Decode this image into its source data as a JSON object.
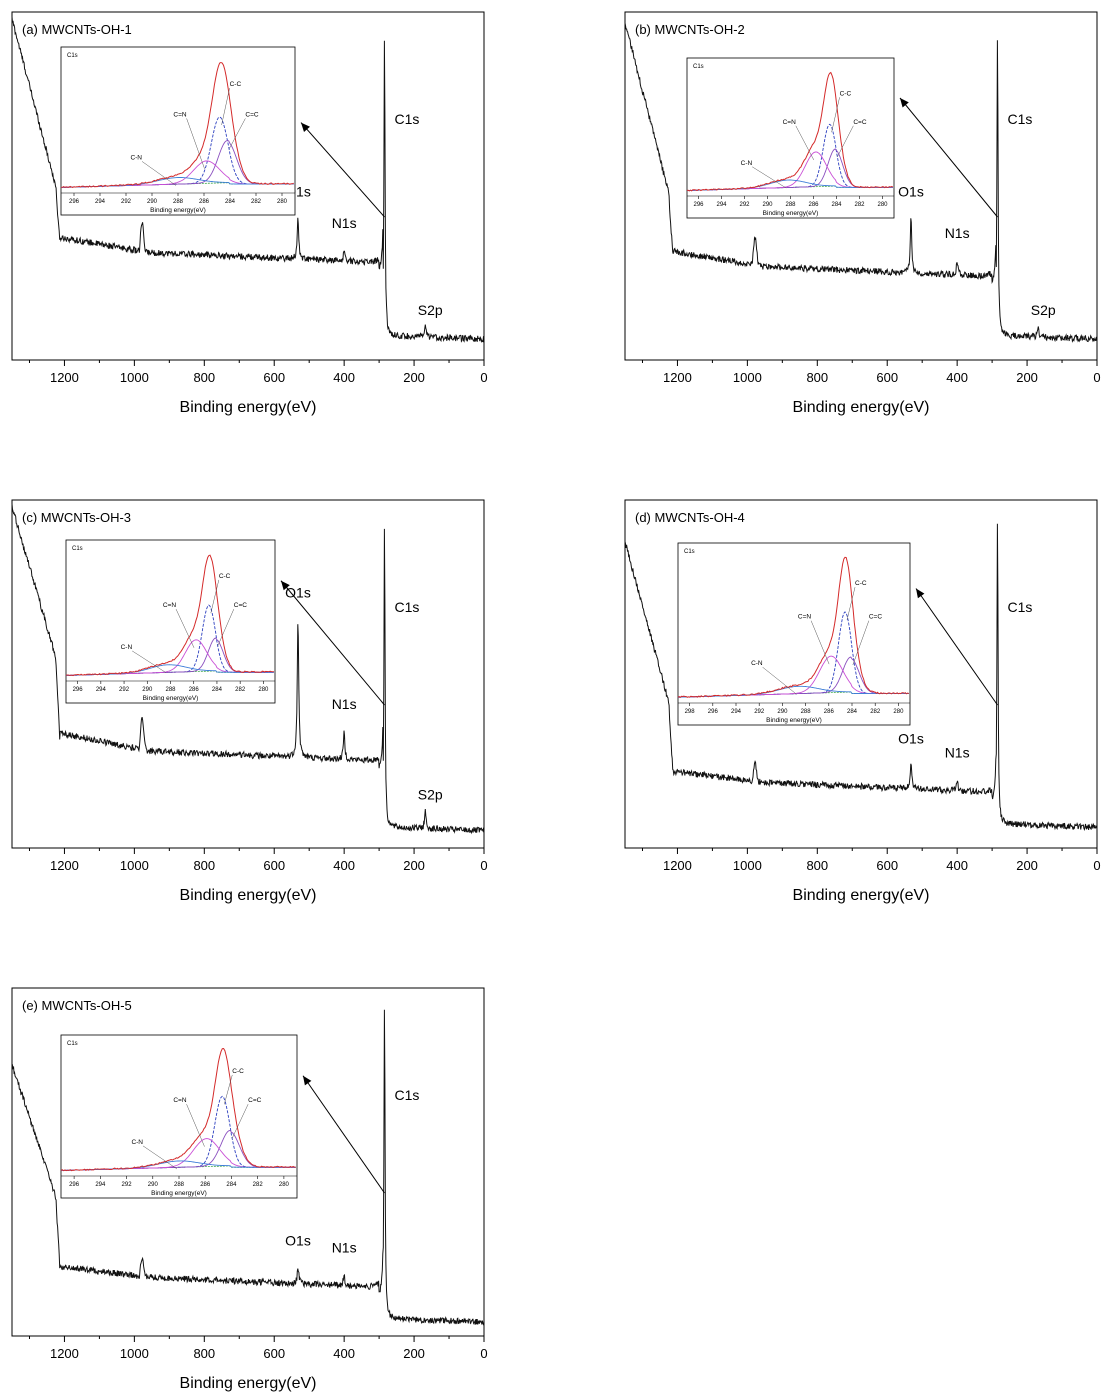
{
  "chart_data": [
    {
      "type": "line",
      "title": "(a) MWCNTs-OH-1",
      "xlabel": "Binding energy(eV)",
      "xlim": [
        1350,
        0
      ],
      "x_ticks": [
        "1200",
        "1000",
        "800",
        "600",
        "400",
        "200",
        "0"
      ],
      "survey": {
        "left_level": 0.98,
        "drop_level": 0.5,
        "base_level": 0.3,
        "c1s_peak": 0.94,
        "end_level": 0.06,
        "o1s_height": 0.12,
        "n1s_height": 0.03,
        "s2p_height": 0.03,
        "shoulder_height": 0.08
      },
      "peak_labels": [
        {
          "label": "C1s",
          "x": 284.6
        },
        {
          "label": "O1s",
          "x": 532
        },
        {
          "label": "N1s",
          "x": 400
        },
        {
          "label": "S2p",
          "x": 168
        }
      ],
      "inset": {
        "title": "C1s",
        "xlabel": "Binding energy(eV)",
        "xlim": [
          297,
          279
        ],
        "x_ticks": [
          "296",
          "294",
          "292",
          "290",
          "288",
          "286",
          "284",
          "282",
          "280"
        ],
        "components": [
          {
            "name": "C-C",
            "center": 284.8,
            "height": 0.5,
            "width": 0.9
          },
          {
            "name": "C=C",
            "center": 284.2,
            "height": 0.32,
            "width": 1.0
          },
          {
            "name": "C=N",
            "center": 285.8,
            "height": 0.17,
            "width": 1.4
          },
          {
            "name": "C-N",
            "center": 288.0,
            "height": 0.05,
            "width": 2.2
          }
        ],
        "envelope_peak": 0.96
      }
    },
    {
      "type": "line",
      "title": "(b) MWCNTs-OH-2",
      "xlabel": "Binding energy(eV)",
      "xlim": [
        1350,
        0
      ],
      "x_ticks": [
        "1200",
        "1000",
        "800",
        "600",
        "400",
        "200",
        "0"
      ],
      "survey": {
        "left_level": 0.97,
        "drop_level": 0.48,
        "base_level": 0.26,
        "c1s_peak": 0.96,
        "end_level": 0.06,
        "o1s_height": 0.16,
        "n1s_height": 0.04,
        "s2p_height": 0.03,
        "shoulder_height": 0.08
      },
      "peak_labels": [
        {
          "label": "C1s",
          "x": 284.6
        },
        {
          "label": "O1s",
          "x": 532
        },
        {
          "label": "N1s",
          "x": 400
        },
        {
          "label": "S2p",
          "x": 168
        }
      ],
      "inset": {
        "title": "C1s",
        "xlabel": "Binding energy(eV)",
        "xlim": [
          297,
          279
        ],
        "x_ticks": [
          "296",
          "294",
          "292",
          "290",
          "288",
          "286",
          "284",
          "282",
          "280"
        ],
        "components": [
          {
            "name": "C-C",
            "center": 284.6,
            "height": 0.5,
            "width": 0.8
          },
          {
            "name": "C=C",
            "center": 284.1,
            "height": 0.3,
            "width": 0.9
          },
          {
            "name": "C=N",
            "center": 285.8,
            "height": 0.28,
            "width": 1.3
          },
          {
            "name": "C-N",
            "center": 288.2,
            "height": 0.06,
            "width": 2.2
          }
        ],
        "envelope_peak": 0.96
      }
    },
    {
      "type": "line",
      "title": "(c) MWCNTs-OH-3",
      "xlabel": "Binding energy(eV)",
      "xlim": [
        1350,
        0
      ],
      "x_ticks": [
        "1200",
        "1000",
        "800",
        "600",
        "400",
        "200",
        "0"
      ],
      "survey": {
        "left_level": 0.98,
        "drop_level": 0.55,
        "base_level": 0.27,
        "c1s_peak": 0.94,
        "end_level": 0.05,
        "o1s_height": 0.4,
        "n1s_height": 0.08,
        "s2p_height": 0.05,
        "shoulder_height": 0.1
      },
      "peak_labels": [
        {
          "label": "C1s",
          "x": 284.6
        },
        {
          "label": "O1s",
          "x": 532
        },
        {
          "label": "N1s",
          "x": 400
        },
        {
          "label": "S2p",
          "x": 168
        }
      ],
      "inset": {
        "title": "C1s",
        "xlabel": "Binding energy(eV)",
        "xlim": [
          297,
          279
        ],
        "x_ticks": [
          "296",
          "294",
          "292",
          "290",
          "288",
          "286",
          "284",
          "282",
          "280"
        ],
        "components": [
          {
            "name": "C-C",
            "center": 284.7,
            "height": 0.52,
            "width": 0.8
          },
          {
            "name": "C=C",
            "center": 284.1,
            "height": 0.26,
            "width": 0.9
          },
          {
            "name": "C=N",
            "center": 285.8,
            "height": 0.25,
            "width": 1.3
          },
          {
            "name": "C-N",
            "center": 288.2,
            "height": 0.06,
            "width": 2.2
          }
        ],
        "envelope_peak": 0.96
      }
    },
    {
      "type": "line",
      "title": "(d) MWCNTs-OH-4",
      "xlabel": "Binding energy(eV)",
      "xlim": [
        1350,
        0
      ],
      "x_ticks": [
        "1200",
        "1000",
        "800",
        "600",
        "400",
        "200",
        "0"
      ],
      "survey": {
        "left_level": 0.88,
        "drop_level": 0.42,
        "base_level": 0.18,
        "c1s_peak": 0.97,
        "end_level": 0.06,
        "o1s_height": 0.07,
        "n1s_height": 0.03,
        "s2p_height": 0.0,
        "shoulder_height": 0.05
      },
      "peak_labels": [
        {
          "label": "C1s",
          "x": 284.6
        },
        {
          "label": "O1s",
          "x": 532
        },
        {
          "label": "N1s",
          "x": 400
        }
      ],
      "inset": {
        "title": "C1s",
        "xlabel": "Binding energy(eV)",
        "xlim": [
          299,
          279
        ],
        "x_ticks": [
          "298",
          "296",
          "294",
          "292",
          "290",
          "288",
          "286",
          "284",
          "282",
          "280"
        ],
        "components": [
          {
            "name": "C-C",
            "center": 284.6,
            "height": 0.55,
            "width": 0.8
          },
          {
            "name": "C=C",
            "center": 284.1,
            "height": 0.24,
            "width": 1.0
          },
          {
            "name": "C=N",
            "center": 285.8,
            "height": 0.25,
            "width": 1.4
          },
          {
            "name": "C-N",
            "center": 288.6,
            "height": 0.05,
            "width": 2.4
          }
        ],
        "envelope_peak": 0.97
      }
    },
    {
      "type": "line",
      "title": "(e) MWCNTs-OH-5",
      "xlabel": "Binding energy(eV)",
      "xlim": [
        1350,
        0
      ],
      "x_ticks": [
        "1200",
        "1000",
        "800",
        "600",
        "400",
        "200",
        "0"
      ],
      "survey": {
        "left_level": 0.78,
        "drop_level": 0.4,
        "base_level": 0.16,
        "c1s_peak": 0.97,
        "end_level": 0.04,
        "o1s_height": 0.05,
        "n1s_height": 0.03,
        "s2p_height": 0.0,
        "shoulder_height": 0.05
      },
      "peak_labels": [
        {
          "label": "C1s",
          "x": 284.6
        },
        {
          "label": "O1s",
          "x": 532
        },
        {
          "label": "N1s",
          "x": 400
        }
      ],
      "inset": {
        "title": "C1s",
        "xlabel": "Binding energy(eV)",
        "xlim": [
          297,
          279
        ],
        "x_ticks": [
          "296",
          "294",
          "292",
          "290",
          "288",
          "286",
          "284",
          "282",
          "280"
        ],
        "components": [
          {
            "name": "C-C",
            "center": 284.7,
            "height": 0.55,
            "width": 0.8
          },
          {
            "name": "C=C",
            "center": 284.1,
            "height": 0.28,
            "width": 1.0
          },
          {
            "name": "C=N",
            "center": 285.9,
            "height": 0.22,
            "width": 1.4
          },
          {
            "name": "C-N",
            "center": 288.0,
            "height": 0.05,
            "width": 2.2
          }
        ],
        "envelope_peak": 0.97
      }
    }
  ],
  "colors": {
    "survey_line": "#111111",
    "axis": "#000000",
    "envelope": "#d42a2a",
    "c_c": "#2c3fbf",
    "c_eq_c": "#8a4fbf",
    "c_eq_n": "#c94fd6",
    "c_n": "#3f7fd8",
    "background_line": "#3fa84a"
  }
}
